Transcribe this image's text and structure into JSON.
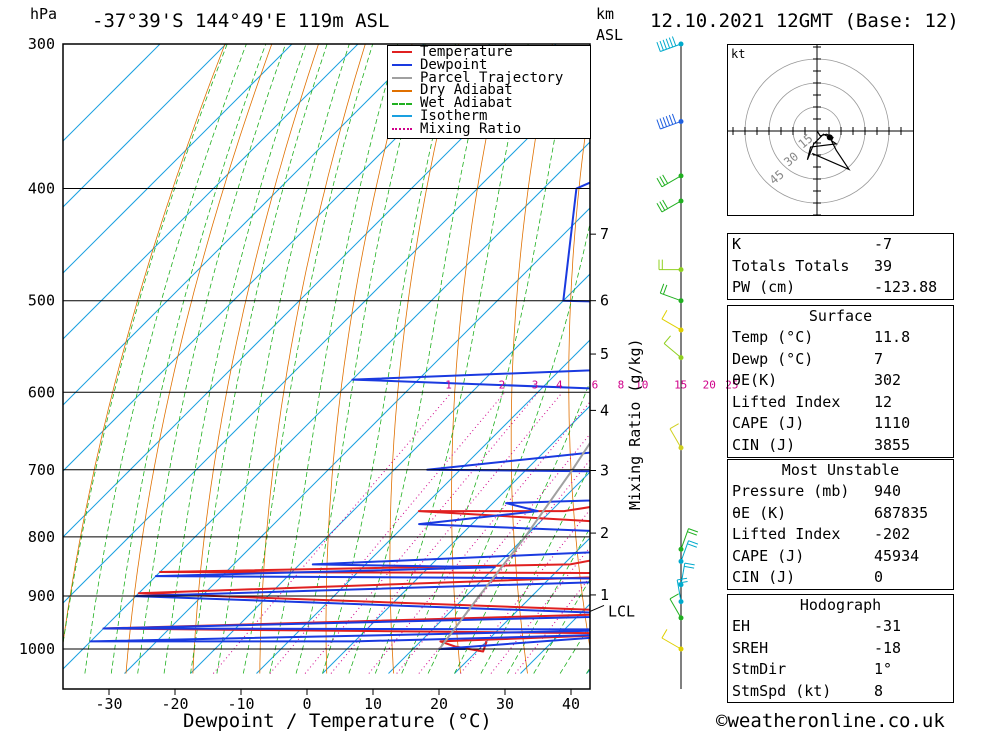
{
  "header": {
    "hpa_label": "hPa",
    "location": "-37°39'S  144°49'E  119m  ASL",
    "km_label": "km",
    "asl_label": "ASL",
    "datetime": "12.10.2021  12GMT  (Base: 12)"
  },
  "chart_data": {
    "type": "skew-t",
    "xlabel": "Dewpoint / Temperature (°C)",
    "ylabel": "hPa",
    "mixing_ratio_axis_label": "Mixing Ratio (g/kg)",
    "x_ticks": [
      -30,
      -20,
      -10,
      0,
      10,
      20,
      30,
      40
    ],
    "pressure_ticks": [
      300,
      400,
      500,
      600,
      700,
      800,
      900,
      1000
    ],
    "pressure_range": [
      300,
      1050
    ],
    "km_ticks": [
      {
        "label": "7",
        "p": 438
      },
      {
        "label": "6",
        "p": 500
      },
      {
        "label": "5",
        "p": 556
      },
      {
        "label": "4",
        "p": 622
      },
      {
        "label": "3",
        "p": 701
      },
      {
        "label": "2",
        "p": 794
      },
      {
        "label": "1",
        "p": 898
      }
    ],
    "lcl": {
      "label": "LCL",
      "p": 928
    },
    "mixing_ratio_labels": [
      "1",
      "2",
      "3",
      "4",
      "6",
      "8",
      "10",
      "15",
      "20",
      "25"
    ],
    "legend": [
      {
        "name": "Temperature",
        "color": "#e02020",
        "style": "solid"
      },
      {
        "name": "Dewpoint",
        "color": "#1a3ae0",
        "style": "solid"
      },
      {
        "name": "Parcel Trajectory",
        "color": "#a0a0a0",
        "style": "solid"
      },
      {
        "name": "Dry Adiabat",
        "color": "#e07000",
        "style": "solid"
      },
      {
        "name": "Wet Adiabat",
        "color": "#20b020",
        "style": "dashed"
      },
      {
        "name": "Isotherm",
        "color": "#1aa0e0",
        "style": "solid"
      },
      {
        "name": "Mixing Ratio",
        "color": "#d0008a",
        "style": "dotted"
      }
    ],
    "series": [
      {
        "name": "Temperature",
        "points": [
          [
            300,
            -28
          ],
          [
            378,
            -25
          ],
          [
            400,
            -14
          ],
          [
            500,
            -5
          ],
          [
            507,
            43
          ],
          [
            660,
            43
          ],
          [
            700,
            15
          ],
          [
            705,
            43
          ],
          [
            760,
            12
          ],
          [
            760,
            -10
          ],
          [
            790,
            43
          ],
          [
            845,
            21
          ],
          [
            858,
            -40
          ],
          [
            860,
            43
          ],
          [
            895,
            -40
          ],
          [
            930,
            43
          ],
          [
            960,
            -40
          ],
          [
            970,
            43
          ],
          [
            985,
            13
          ],
          [
            995,
            16
          ],
          [
            1005,
            21
          ],
          [
            985,
            20
          ]
        ]
      },
      {
        "name": "Dewpoint",
        "points": [
          [
            300,
            -30
          ],
          [
            380,
            -30
          ],
          [
            400,
            -35
          ],
          [
            500,
            -20
          ],
          [
            510,
            43
          ],
          [
            560,
            43
          ],
          [
            585,
            -40
          ],
          [
            608,
            43
          ],
          [
            640,
            43
          ],
          [
            700,
            -15
          ],
          [
            705,
            43
          ],
          [
            735,
            43
          ],
          [
            748,
            2
          ],
          [
            760,
            8
          ],
          [
            780,
            -8
          ],
          [
            800,
            43
          ],
          [
            815,
            43
          ],
          [
            845,
            -18
          ],
          [
            850,
            10
          ],
          [
            865,
            -40
          ],
          [
            870,
            43
          ],
          [
            900,
            -40
          ],
          [
            935,
            43
          ],
          [
            960,
            -40
          ],
          [
            962,
            43
          ],
          [
            985,
            -40
          ],
          [
            985,
            0
          ],
          [
            970,
            43
          ],
          [
            1000,
            14
          ],
          [
            1000,
            18
          ]
        ]
      },
      {
        "name": "Parcel Trajectory",
        "points": [
          [
            300,
            -13
          ],
          [
            400,
            -11
          ],
          [
            500,
            -3
          ],
          [
            600,
            3
          ],
          [
            700,
            7
          ],
          [
            800,
            10
          ],
          [
            900,
            12
          ],
          [
            1000,
            14
          ]
        ]
      }
    ]
  },
  "hodograph": {
    "unit_label": "kt",
    "ring_labels": [
      "15",
      "30",
      "45"
    ],
    "wind_points": [
      [
        0,
        0
      ],
      [
        2,
        -3
      ],
      [
        6,
        -2
      ],
      [
        10,
        -4
      ],
      [
        9,
        -6
      ],
      [
        12,
        -8
      ],
      [
        -4,
        -10
      ],
      [
        -6,
        -18
      ],
      [
        -2,
        -8
      ],
      [
        4,
        -2
      ],
      [
        8,
        -4
      ],
      [
        12,
        -12
      ],
      [
        16,
        -18
      ],
      [
        20,
        -24
      ],
      [
        -3,
        -14
      ]
    ]
  },
  "wind_profile": {
    "levels": [
      {
        "p": 300,
        "dir": 250,
        "spd": 60,
        "color": "#00aacc"
      },
      {
        "p": 350,
        "dir": 250,
        "spd": 55,
        "color": "#2060e0"
      },
      {
        "p": 390,
        "dir": 240,
        "spd": 30,
        "color": "#20b020"
      },
      {
        "p": 410,
        "dir": 240,
        "spd": 30,
        "color": "#20b020"
      },
      {
        "p": 470,
        "dir": 270,
        "spd": 20,
        "color": "#90d020"
      },
      {
        "p": 500,
        "dir": 290,
        "spd": 15,
        "color": "#20b020"
      },
      {
        "p": 530,
        "dir": 300,
        "spd": 10,
        "color": "#e0d000"
      },
      {
        "p": 560,
        "dir": 310,
        "spd": 10,
        "color": "#90d020"
      },
      {
        "p": 670,
        "dir": 330,
        "spd": 5,
        "color": "#d0d020"
      },
      {
        "p": 820,
        "dir": 20,
        "spd": 20,
        "color": "#20b020"
      },
      {
        "p": 840,
        "dir": 20,
        "spd": 15,
        "color": "#00aacc"
      },
      {
        "p": 880,
        "dir": 10,
        "spd": 15,
        "color": "#00aacc"
      },
      {
        "p": 910,
        "dir": 350,
        "spd": 15,
        "color": "#00aacc"
      },
      {
        "p": 940,
        "dir": 330,
        "spd": 10,
        "color": "#20b020"
      },
      {
        "p": 1000,
        "dir": 300,
        "spd": 5,
        "color": "#e0d000"
      }
    ]
  },
  "indices": [
    {
      "label": "K",
      "value": "-7"
    },
    {
      "label": "Totals Totals",
      "value": "39"
    },
    {
      "label": "PW (cm)",
      "value": "-123.88"
    }
  ],
  "surface": {
    "title": "Surface",
    "rows": [
      {
        "label": "Temp (°C)",
        "value": "11.8"
      },
      {
        "label": "Dewp (°C)",
        "value": "7"
      },
      {
        "label": "θE(K)",
        "value": "302"
      },
      {
        "label": "Lifted Index",
        "value": "12"
      },
      {
        "label": "CAPE (J)",
        "value": "1110"
      },
      {
        "label": "CIN (J)",
        "value": "3855"
      }
    ]
  },
  "most_unstable": {
    "title": "Most Unstable",
    "rows": [
      {
        "label": "Pressure (mb)",
        "value": "940"
      },
      {
        "label": "θE (K)",
        "value": "687835"
      },
      {
        "label": "Lifted Index",
        "value": "-202"
      },
      {
        "label": "CAPE (J)",
        "value": "45934"
      },
      {
        "label": "CIN (J)",
        "value": "0"
      }
    ]
  },
  "hodo_table": {
    "title": "Hodograph",
    "rows": [
      {
        "label": "EH",
        "value": "-31"
      },
      {
        "label": "SREH",
        "value": "-18"
      },
      {
        "label": "StmDir",
        "value": "1°"
      },
      {
        "label": "StmSpd (kt)",
        "value": "8"
      }
    ]
  },
  "footer": {
    "copyright": "©weatheronline.co.uk"
  }
}
